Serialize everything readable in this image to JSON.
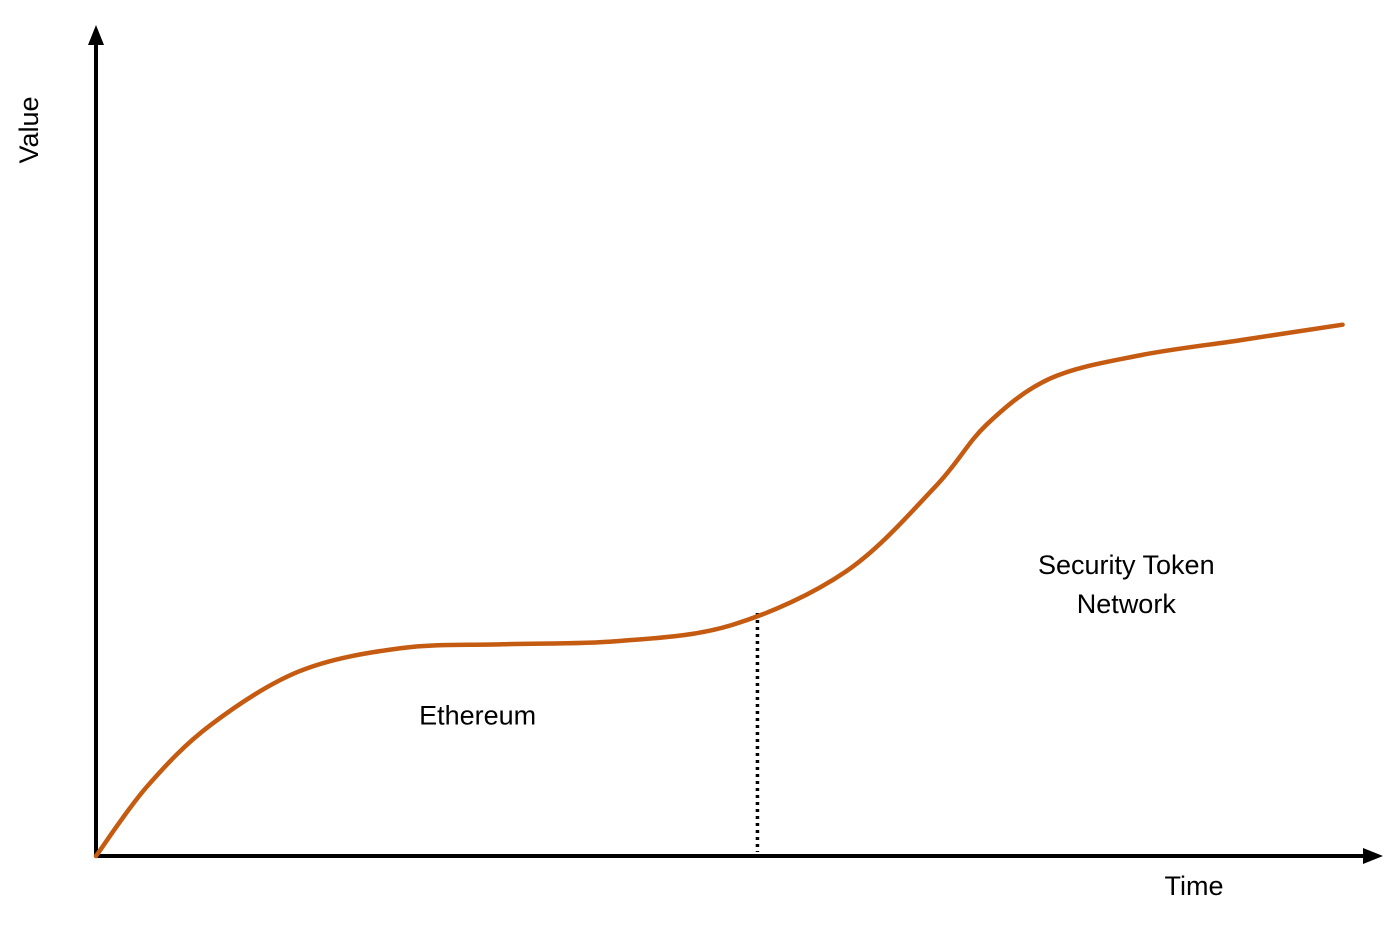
{
  "chart_data": {
    "type": "line",
    "title": "",
    "xlabel": "Time",
    "ylabel": "Value",
    "axes": {
      "x_ticks": false,
      "y_ticks": false,
      "arrows": true
    },
    "series": [
      {
        "points": [
          [
            0.0,
            0.0
          ],
          [
            0.04,
            0.09
          ],
          [
            0.09,
            0.17
          ],
          [
            0.16,
            0.24
          ],
          [
            0.24,
            0.27
          ],
          [
            0.32,
            0.275
          ],
          [
            0.41,
            0.279
          ],
          [
            0.5,
            0.3
          ],
          [
            0.59,
            0.37
          ],
          [
            0.66,
            0.48
          ],
          [
            0.7,
            0.56
          ],
          [
            0.75,
            0.62
          ],
          [
            0.82,
            0.65
          ],
          [
            0.9,
            0.67
          ],
          [
            0.98,
            0.69
          ]
        ]
      }
    ],
    "divider": {
      "x": 0.52,
      "style": "dotted"
    },
    "annotations": [
      {
        "lines": [
          "Ethereum"
        ],
        "x": 0.3,
        "y": 0.18
      },
      {
        "lines": [
          "Security Token",
          "Network"
        ],
        "x": 0.81,
        "y": 0.35
      }
    ],
    "colors": {
      "line": "#C55A11",
      "axis": "#000000",
      "divider": "#000000",
      "text": "#000000"
    },
    "grid": false,
    "legend": "none",
    "xlim": [
      0,
      1
    ],
    "ylim": [
      0,
      1
    ]
  }
}
